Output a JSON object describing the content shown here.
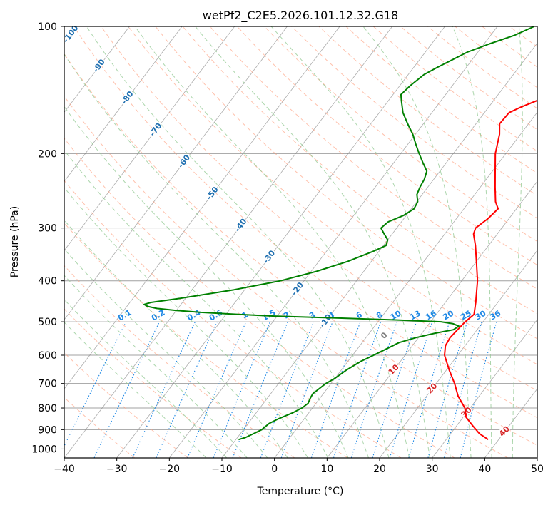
{
  "chart_data": {
    "type": "skew-t",
    "title": "wetPf2_C2E5.2026.101.12.32.G18",
    "xlabel": "Temperature (°C)",
    "ylabel": "Pressure (hPa)",
    "xlim": [
      -40,
      50
    ],
    "ylim": [
      1050,
      100
    ],
    "x_ticks": [
      -40,
      -30,
      -20,
      -10,
      0,
      10,
      20,
      30,
      40,
      50
    ],
    "y_ticks": [
      100,
      200,
      300,
      400,
      500,
      600,
      700,
      800,
      900,
      1000
    ],
    "colors": {
      "temperature": "#ff0000",
      "dewpoint": "#008000",
      "isotherm": "#7f7f7f",
      "isobar": "#a0a0a0",
      "dry_adiabat": "#ff9f80",
      "moist_adiabat": "#90c890",
      "mixing_ratio": "#1e88e5",
      "skewed_isotherm_label": "#1f6fb0",
      "dry_adiabat_label": "#d62728",
      "zero_label": "#7f7f7f"
    },
    "series": [
      {
        "name": "temperature",
        "points": [
          [
            950,
            38.0
          ],
          [
            920,
            35.5
          ],
          [
            880,
            33.0
          ],
          [
            840,
            30.5
          ],
          [
            800,
            29.0
          ],
          [
            750,
            26.0
          ],
          [
            700,
            23.5
          ],
          [
            650,
            20.5
          ],
          [
            600,
            17.5
          ],
          [
            570,
            16.3
          ],
          [
            545,
            16.0
          ],
          [
            520,
            16.3
          ],
          [
            500,
            16.6
          ],
          [
            480,
            17.2
          ],
          [
            450,
            15.8
          ],
          [
            400,
            13.0
          ],
          [
            360,
            10.0
          ],
          [
            330,
            7.5
          ],
          [
            310,
            5.5
          ],
          [
            300,
            5.0
          ],
          [
            285,
            6.0
          ],
          [
            270,
            6.5
          ],
          [
            260,
            5.0
          ],
          [
            240,
            2.8
          ],
          [
            220,
            0.5
          ],
          [
            200,
            -2.0
          ],
          [
            180,
            -4.0
          ],
          [
            170,
            -5.5
          ],
          [
            160,
            -5.3
          ],
          [
            155,
            -3.8
          ],
          [
            148,
            -1.0
          ],
          [
            140,
            2.5
          ],
          [
            130,
            4.5
          ],
          [
            120,
            4.8
          ],
          [
            110,
            4.5
          ],
          [
            105,
            4.8
          ],
          [
            100,
            5.5
          ]
        ]
      },
      {
        "name": "dewpoint",
        "points": [
          [
            950,
            -9.5
          ],
          [
            940,
            -8.5
          ],
          [
            920,
            -7.5
          ],
          [
            900,
            -6.5
          ],
          [
            870,
            -6.0
          ],
          [
            850,
            -5.0
          ],
          [
            820,
            -3.0
          ],
          [
            800,
            -2.0
          ],
          [
            780,
            -1.5
          ],
          [
            760,
            -1.8
          ],
          [
            740,
            -2.0
          ],
          [
            720,
            -1.5
          ],
          [
            700,
            -1.0
          ],
          [
            680,
            0.0
          ],
          [
            650,
            1.0
          ],
          [
            620,
            2.5
          ],
          [
            600,
            4.0
          ],
          [
            580,
            5.5
          ],
          [
            560,
            7.0
          ],
          [
            545,
            9.5
          ],
          [
            532,
            12.5
          ],
          [
            522,
            15.5
          ],
          [
            512,
            16.0
          ],
          [
            505,
            14.5
          ],
          [
            500,
            12.0
          ],
          [
            495,
            3.0
          ],
          [
            490,
            -8.0
          ],
          [
            485,
            -20.0
          ],
          [
            480,
            -28.0
          ],
          [
            475,
            -35.0
          ],
          [
            470,
            -40.0
          ],
          [
            465,
            -44.0
          ],
          [
            460,
            -46.0
          ],
          [
            455,
            -47.0
          ],
          [
            450,
            -46.0
          ],
          [
            440,
            -41.0
          ],
          [
            420,
            -32.0
          ],
          [
            400,
            -24.5
          ],
          [
            380,
            -19.0
          ],
          [
            360,
            -14.5
          ],
          [
            340,
            -11.0
          ],
          [
            330,
            -9.5
          ],
          [
            320,
            -10.0
          ],
          [
            310,
            -11.5
          ],
          [
            300,
            -13.0
          ],
          [
            290,
            -12.5
          ],
          [
            280,
            -10.5
          ],
          [
            270,
            -9.5
          ],
          [
            260,
            -9.8
          ],
          [
            250,
            -11.0
          ],
          [
            240,
            -11.5
          ],
          [
            230,
            -11.8
          ],
          [
            220,
            -12.5
          ],
          [
            210,
            -14.5
          ],
          [
            200,
            -16.5
          ],
          [
            190,
            -18.5
          ],
          [
            180,
            -20.5
          ],
          [
            170,
            -23.0
          ],
          [
            160,
            -25.5
          ],
          [
            150,
            -27.5
          ],
          [
            145,
            -28.5
          ],
          [
            138,
            -28.0
          ],
          [
            130,
            -27.0
          ],
          [
            125,
            -25.5
          ],
          [
            115,
            -22.0
          ],
          [
            110,
            -19.0
          ],
          [
            105,
            -15.5
          ],
          [
            100,
            -13.0
          ]
        ]
      }
    ],
    "skewed_isotherm_labels": [
      "-100",
      "-90",
      "-80",
      "-70",
      "-60",
      "-50",
      "-40",
      "-30",
      "-20",
      "-10"
    ],
    "mixing_ratio_labels": [
      "0.1",
      "0.2",
      "0.4",
      "0.6",
      "1",
      "1.5",
      "2",
      "3",
      "4",
      "6",
      "8",
      "10",
      "13",
      "16",
      "20",
      "25",
      "30",
      "36"
    ],
    "dry_adiabat_labels": [
      "10",
      "20",
      "30",
      "40"
    ],
    "zero_label": "0"
  }
}
